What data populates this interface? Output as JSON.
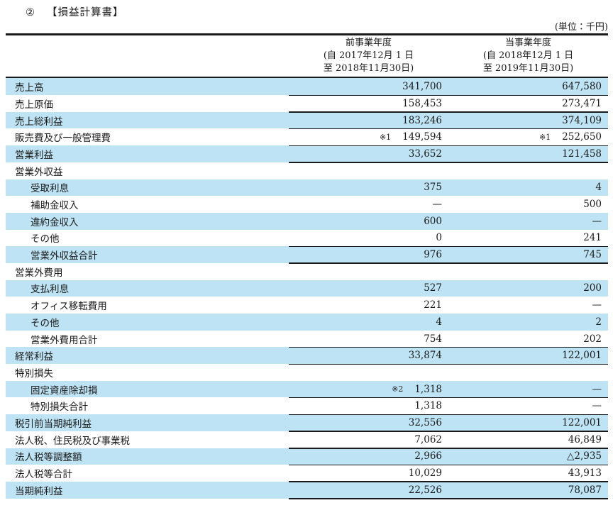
{
  "document": {
    "section_number": "②",
    "title": "【損益計算書】",
    "unit_note": "(単位：千円)"
  },
  "colors": {
    "row_highlight": "#bee3f4",
    "rule_line": "#1a1a1a",
    "text": "#1a1a1a"
  },
  "table": {
    "columns": [
      {
        "name": "前事業年度",
        "period_from": "(自 2017年12月 1 日",
        "period_to": "至 2018年11月30日)"
      },
      {
        "name": "当事業年度",
        "period_from": "(自 2018年12月 1 日",
        "period_to": "至 2019年11月30日)"
      }
    ],
    "rows": [
      {
        "label": "売上高",
        "indent": 0,
        "prev": "341,700",
        "curr": "647,580",
        "shaded": true,
        "rule": true
      },
      {
        "label": "売上原価",
        "indent": 0,
        "prev": "158,453",
        "curr": "273,471",
        "shaded": false,
        "rule": true
      },
      {
        "label": "売上総利益",
        "indent": 0,
        "prev": "183,246",
        "curr": "374,109",
        "shaded": true,
        "rule": true
      },
      {
        "label": "販売費及び一般管理費",
        "indent": 0,
        "prev_note": "※1",
        "prev": "149,594",
        "curr_note": "※1",
        "curr": "252,650",
        "shaded": false,
        "rule": true
      },
      {
        "label": "営業利益",
        "indent": 0,
        "prev": "33,652",
        "curr": "121,458",
        "shaded": true,
        "rule": true
      },
      {
        "label": "営業外収益",
        "indent": 0,
        "prev": "",
        "curr": "",
        "shaded": false,
        "rule": false
      },
      {
        "label": "受取利息",
        "indent": 1,
        "prev": "375",
        "curr": "4",
        "shaded": true,
        "rule": false
      },
      {
        "label": "補助金収入",
        "indent": 1,
        "prev": "—",
        "curr": "500",
        "shaded": false,
        "rule": false
      },
      {
        "label": "違約金収入",
        "indent": 1,
        "prev": "600",
        "curr": "—",
        "shaded": true,
        "rule": false
      },
      {
        "label": "その他",
        "indent": 1,
        "prev": "0",
        "curr": "241",
        "shaded": false,
        "rule": true
      },
      {
        "label": "営業外収益合計",
        "indent": 1,
        "prev": "976",
        "curr": "745",
        "shaded": true,
        "rule": true
      },
      {
        "label": "営業外費用",
        "indent": 0,
        "prev": "",
        "curr": "",
        "shaded": false,
        "rule": false
      },
      {
        "label": "支払利息",
        "indent": 1,
        "prev": "527",
        "curr": "200",
        "shaded": true,
        "rule": false
      },
      {
        "label": "オフィス移転費用",
        "indent": 1,
        "prev": "221",
        "curr": "—",
        "shaded": false,
        "rule": false
      },
      {
        "label": "その他",
        "indent": 1,
        "prev": "4",
        "curr": "2",
        "shaded": true,
        "rule": false
      },
      {
        "label": "営業外費用合計",
        "indent": 1,
        "prev": "754",
        "curr": "202",
        "shaded": false,
        "rule": true
      },
      {
        "label": "経常利益",
        "indent": 0,
        "prev": "33,874",
        "curr": "122,001",
        "shaded": true,
        "rule": true
      },
      {
        "label": "特別損失",
        "indent": 0,
        "prev": "",
        "curr": "",
        "shaded": false,
        "rule": false
      },
      {
        "label": "固定資産除却損",
        "indent": 1,
        "prev_note": "※2",
        "prev": "1,318",
        "curr": "—",
        "shaded": true,
        "rule": true
      },
      {
        "label": "特別損失合計",
        "indent": 1,
        "prev": "1,318",
        "curr": "—",
        "shaded": false,
        "rule": true
      },
      {
        "label": "税引前当期純利益",
        "indent": 0,
        "prev": "32,556",
        "curr": "122,001",
        "shaded": true,
        "rule": true
      },
      {
        "label": "法人税、住民税及び事業税",
        "indent": 0,
        "prev": "7,062",
        "curr": "46,849",
        "shaded": false,
        "rule": true
      },
      {
        "label": "法人税等調整額",
        "indent": 0,
        "prev": "2,966",
        "curr": "△2,935",
        "shaded": true,
        "rule": true
      },
      {
        "label": "法人税等合計",
        "indent": 0,
        "prev": "10,029",
        "curr": "43,913",
        "shaded": false,
        "rule": true
      },
      {
        "label": "当期純利益",
        "indent": 0,
        "prev": "22,526",
        "curr": "78,087",
        "shaded": true,
        "rule": true,
        "rule_thick": true
      }
    ]
  }
}
